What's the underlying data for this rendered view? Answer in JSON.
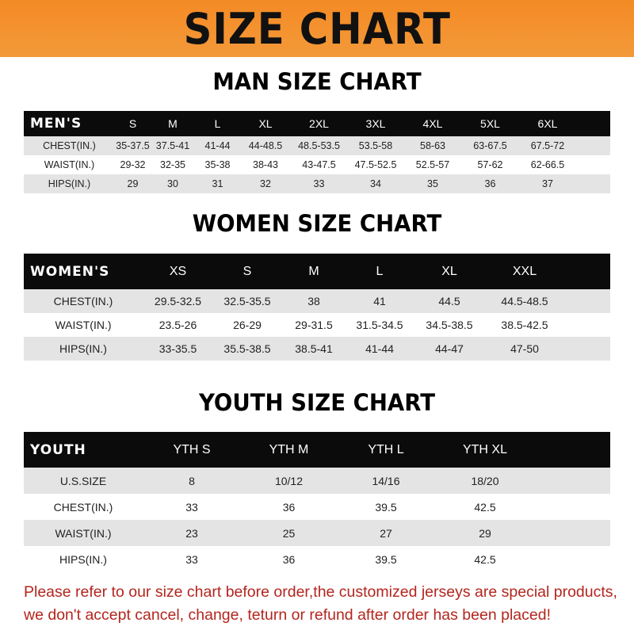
{
  "banner_title": "SIZE CHART",
  "men": {
    "heading": "MAN SIZE CHART",
    "header_label": "MEN'S",
    "sizes": [
      "S",
      "M",
      "L",
      "XL",
      "2XL",
      "3XL",
      "4XL",
      "5XL",
      "6XL"
    ],
    "rows": [
      {
        "label": "CHEST(IN.)",
        "values": [
          "35-37.5",
          "37.5-41",
          "41-44",
          "44-48.5",
          "48.5-53.5",
          "53.5-58",
          "58-63",
          "63-67.5",
          "67.5-72"
        ]
      },
      {
        "label": "WAIST(IN.)",
        "values": [
          "29-32",
          "32-35",
          "35-38",
          "38-43",
          "43-47.5",
          "47.5-52.5",
          "52.5-57",
          "57-62",
          "62-66.5"
        ]
      },
      {
        "label": "HIPS(IN.)",
        "values": [
          "29",
          "30",
          "31",
          "32",
          "33",
          "34",
          "35",
          "36",
          "37"
        ]
      }
    ]
  },
  "women": {
    "heading": "WOMEN SIZE CHART",
    "header_label": "WOMEN'S",
    "sizes": [
      "XS",
      "S",
      "M",
      "L",
      "XL",
      "XXL"
    ],
    "rows": [
      {
        "label": "CHEST(IN.)",
        "values": [
          "29.5-32.5",
          "32.5-35.5",
          "38",
          "41",
          "44.5",
          "44.5-48.5"
        ]
      },
      {
        "label": "WAIST(IN.)",
        "values": [
          "23.5-26",
          "26-29",
          "29-31.5",
          "31.5-34.5",
          "34.5-38.5",
          "38.5-42.5"
        ]
      },
      {
        "label": "HIPS(IN.)",
        "values": [
          "33-35.5",
          "35.5-38.5",
          "38.5-41",
          "41-44",
          "44-47",
          "47-50"
        ]
      }
    ]
  },
  "youth": {
    "heading": "YOUTH SIZE CHART",
    "header_label": "YOUTH",
    "sizes": [
      "YTH S",
      "YTH M",
      "YTH L",
      "YTH XL"
    ],
    "rows": [
      {
        "label": "U.S.SIZE",
        "values": [
          "8",
          "10/12",
          "14/16",
          "18/20"
        ]
      },
      {
        "label": "CHEST(IN.)",
        "values": [
          "33",
          "36",
          "39.5",
          "42.5"
        ]
      },
      {
        "label": "WAIST(IN.)",
        "values": [
          "23",
          "25",
          "27",
          "29"
        ]
      },
      {
        "label": "HIPS(IN.)",
        "values": [
          "33",
          "36",
          "39.5",
          "42.5"
        ]
      }
    ]
  },
  "note": {
    "line1": "Please refer to our size chart before order,the customized jerseys are special products,",
    "line2": "we don't accept cancel, change, teturn or refund after order has been placed!"
  },
  "colors": {
    "banner": "#f48a24",
    "header_row": "#0b0b0b",
    "stripe": "#e4e4e4",
    "note": "#b3261e"
  }
}
